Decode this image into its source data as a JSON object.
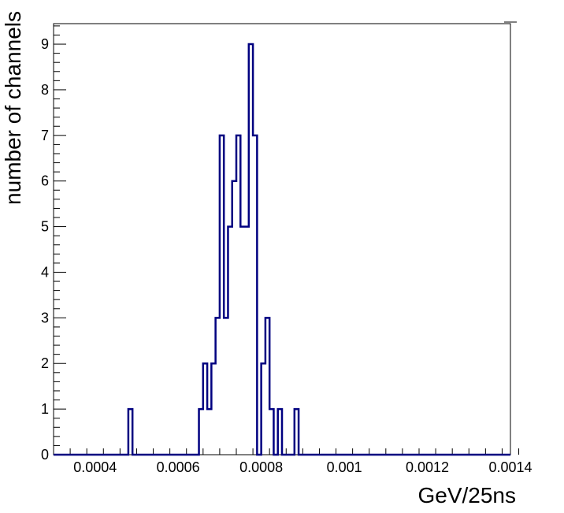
{
  "chart_data": {
    "type": "bar",
    "style": "step-histogram",
    "title": "",
    "xlabel": "GeV/25ns",
    "ylabel": "number of channels",
    "xlim": [
      0.0003,
      0.0014
    ],
    "ylim": [
      0,
      9.45
    ],
    "x_ticks": [
      0.0004,
      0.0006,
      0.0008,
      0.001,
      0.0012,
      0.0014
    ],
    "x_tick_labels": [
      "0.0004",
      "0.0006",
      "0.0008",
      "0.001",
      "0.0012",
      "0.0014"
    ],
    "y_ticks": [
      0,
      1,
      2,
      3,
      4,
      5,
      6,
      7,
      8,
      9
    ],
    "y_tick_labels": [
      "0",
      "1",
      "2",
      "3",
      "4",
      "5",
      "6",
      "7",
      "8",
      "9"
    ],
    "grid": false,
    "line_color": "#000080",
    "bins": [
      {
        "x0": 0.00048,
        "x1": 0.00049,
        "count": 1
      },
      {
        "x0": 0.00065,
        "x1": 0.00066,
        "count": 1
      },
      {
        "x0": 0.00066,
        "x1": 0.00067,
        "count": 2
      },
      {
        "x0": 0.00067,
        "x1": 0.00068,
        "count": 1
      },
      {
        "x0": 0.00068,
        "x1": 0.00069,
        "count": 2
      },
      {
        "x0": 0.00069,
        "x1": 0.0007,
        "count": 3
      },
      {
        "x0": 0.0007,
        "x1": 0.00071,
        "count": 7
      },
      {
        "x0": 0.00071,
        "x1": 0.00072,
        "count": 3
      },
      {
        "x0": 0.00072,
        "x1": 0.00073,
        "count": 5
      },
      {
        "x0": 0.00073,
        "x1": 0.00074,
        "count": 6
      },
      {
        "x0": 0.00074,
        "x1": 0.00075,
        "count": 7
      },
      {
        "x0": 0.00075,
        "x1": 0.00076,
        "count": 5
      },
      {
        "x0": 0.00076,
        "x1": 0.00077,
        "count": 5
      },
      {
        "x0": 0.00077,
        "x1": 0.00078,
        "count": 9
      },
      {
        "x0": 0.00078,
        "x1": 0.00079,
        "count": 7
      },
      {
        "x0": 0.00079,
        "x1": 0.0008,
        "count": 0
      },
      {
        "x0": 0.0008,
        "x1": 0.00081,
        "count": 2
      },
      {
        "x0": 0.00081,
        "x1": 0.00082,
        "count": 3
      },
      {
        "x0": 0.00082,
        "x1": 0.00083,
        "count": 1
      },
      {
        "x0": 0.00083,
        "x1": 0.00084,
        "count": 0
      },
      {
        "x0": 0.00084,
        "x1": 0.00085,
        "count": 1
      },
      {
        "x0": 0.00085,
        "x1": 0.00086,
        "count": 0
      },
      {
        "x0": 0.00086,
        "x1": 0.00087,
        "count": 0
      },
      {
        "x0": 0.00087,
        "x1": 0.00088,
        "count": 0
      },
      {
        "x0": 0.00088,
        "x1": 0.00089,
        "count": 1
      }
    ]
  }
}
